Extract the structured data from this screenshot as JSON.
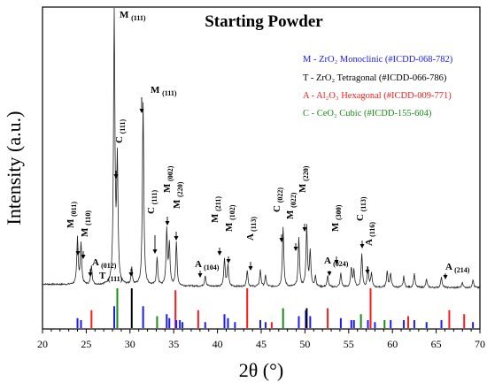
{
  "chart_data": {
    "type": "line",
    "title": "Starting Powder",
    "xlabel": "2θ (°)",
    "ylabel": "Intensity (a.u.)",
    "xlim": [
      20,
      70
    ],
    "xticks": [
      20,
      25,
      30,
      35,
      40,
      45,
      50,
      55,
      60,
      65,
      70
    ],
    "grid": false,
    "legend_placement": "top-right",
    "colors": {
      "M": "#1a1aff",
      "T": "#000000",
      "A": "#ff1a1a",
      "C": "#1a8c1a",
      "trace": "#222222"
    },
    "legend": [
      {
        "key": "M",
        "text": "M - ZrO₂ Monoclinic (#ICDD-068-782)"
      },
      {
        "key": "T",
        "text": "T - ZrO₂ Tetragonal (#ICDD-066-786)"
      },
      {
        "key": "A",
        "text": "A - Al₂O₃ Hexagonal (#ICDD-009-771)"
      },
      {
        "key": "C",
        "text": "C - CeO₂ Cubic (#ICDD-155-604)"
      }
    ],
    "pattern_peaks": [
      {
        "x": 24.0,
        "h": 0.17
      },
      {
        "x": 24.4,
        "h": 0.15
      },
      {
        "x": 25.6,
        "h": 0.07
      },
      {
        "x": 28.2,
        "h": 1.0
      },
      {
        "x": 28.55,
        "h": 0.44
      },
      {
        "x": 30.2,
        "h": 0.06
      },
      {
        "x": 31.5,
        "h": 0.67
      },
      {
        "x": 33.1,
        "h": 0.1
      },
      {
        "x": 34.2,
        "h": 0.2
      },
      {
        "x": 34.5,
        "h": 0.15
      },
      {
        "x": 35.3,
        "h": 0.16
      },
      {
        "x": 38.6,
        "h": 0.04
      },
      {
        "x": 40.8,
        "h": 0.1
      },
      {
        "x": 41.2,
        "h": 0.08
      },
      {
        "x": 43.4,
        "h": 0.06
      },
      {
        "x": 44.9,
        "h": 0.06
      },
      {
        "x": 45.5,
        "h": 0.04
      },
      {
        "x": 47.5,
        "h": 0.22
      },
      {
        "x": 49.3,
        "h": 0.18
      },
      {
        "x": 50.2,
        "h": 0.22
      },
      {
        "x": 50.6,
        "h": 0.13
      },
      {
        "x": 51.2,
        "h": 0.04
      },
      {
        "x": 52.6,
        "h": 0.04
      },
      {
        "x": 54.1,
        "h": 0.05
      },
      {
        "x": 55.3,
        "h": 0.07
      },
      {
        "x": 55.6,
        "h": 0.06
      },
      {
        "x": 56.5,
        "h": 0.12
      },
      {
        "x": 57.2,
        "h": 0.07
      },
      {
        "x": 57.6,
        "h": 0.05
      },
      {
        "x": 59.4,
        "h": 0.06
      },
      {
        "x": 59.8,
        "h": 0.05
      },
      {
        "x": 61.3,
        "h": 0.04
      },
      {
        "x": 62.5,
        "h": 0.05
      },
      {
        "x": 63.9,
        "h": 0.03
      },
      {
        "x": 65.6,
        "h": 0.04
      },
      {
        "x": 68.0,
        "h": 0.02
      },
      {
        "x": 69.2,
        "h": 0.03
      }
    ],
    "reference_lines": [
      {
        "phase": "M",
        "x": 24.0,
        "h": 0.25
      },
      {
        "phase": "M",
        "x": 24.4,
        "h": 0.2
      },
      {
        "phase": "A",
        "x": 25.6,
        "h": 0.45
      },
      {
        "phase": "M",
        "x": 28.2,
        "h": 0.55
      },
      {
        "phase": "C",
        "x": 28.55,
        "h": 1.0
      },
      {
        "phase": "T",
        "x": 30.2,
        "h": 1.0
      },
      {
        "phase": "M",
        "x": 31.5,
        "h": 0.55
      },
      {
        "phase": "C",
        "x": 33.1,
        "h": 0.3
      },
      {
        "phase": "M",
        "x": 34.2,
        "h": 0.35
      },
      {
        "phase": "M",
        "x": 34.5,
        "h": 0.25
      },
      {
        "phase": "A",
        "x": 35.2,
        "h": 0.95
      },
      {
        "phase": "M",
        "x": 35.3,
        "h": 0.2
      },
      {
        "phase": "M",
        "x": 35.7,
        "h": 0.2
      },
      {
        "phase": "M",
        "x": 36.0,
        "h": 0.15
      },
      {
        "phase": "A",
        "x": 37.8,
        "h": 0.45
      },
      {
        "phase": "M",
        "x": 38.6,
        "h": 0.15
      },
      {
        "phase": "M",
        "x": 40.8,
        "h": 0.35
      },
      {
        "phase": "M",
        "x": 41.2,
        "h": 0.25
      },
      {
        "phase": "M",
        "x": 42.0,
        "h": 0.15
      },
      {
        "phase": "A",
        "x": 43.4,
        "h": 1.0
      },
      {
        "phase": "M",
        "x": 44.9,
        "h": 0.2
      },
      {
        "phase": "M",
        "x": 45.5,
        "h": 0.15
      },
      {
        "phase": "A",
        "x": 46.2,
        "h": 0.15
      },
      {
        "phase": "C",
        "x": 47.5,
        "h": 0.5
      },
      {
        "phase": "M",
        "x": 49.3,
        "h": 0.3
      },
      {
        "phase": "M",
        "x": 50.1,
        "h": 0.45
      },
      {
        "phase": "T",
        "x": 50.2,
        "h": 0.5
      },
      {
        "phase": "M",
        "x": 50.6,
        "h": 0.3
      },
      {
        "phase": "A",
        "x": 52.6,
        "h": 0.5
      },
      {
        "phase": "M",
        "x": 54.1,
        "h": 0.25
      },
      {
        "phase": "M",
        "x": 55.3,
        "h": 0.2
      },
      {
        "phase": "M",
        "x": 55.6,
        "h": 0.2
      },
      {
        "phase": "C",
        "x": 56.4,
        "h": 0.35
      },
      {
        "phase": "A",
        "x": 57.5,
        "h": 1.0
      },
      {
        "phase": "M",
        "x": 57.2,
        "h": 0.2
      },
      {
        "phase": "M",
        "x": 58.0,
        "h": 0.15
      },
      {
        "phase": "C",
        "x": 59.1,
        "h": 0.2
      },
      {
        "phase": "M",
        "x": 59.8,
        "h": 0.2
      },
      {
        "phase": "M",
        "x": 61.3,
        "h": 0.2
      },
      {
        "phase": "A",
        "x": 61.8,
        "h": 0.3
      },
      {
        "phase": "M",
        "x": 62.5,
        "h": 0.2
      },
      {
        "phase": "M",
        "x": 63.9,
        "h": 0.15
      },
      {
        "phase": "M",
        "x": 65.6,
        "h": 0.2
      },
      {
        "phase": "A",
        "x": 66.5,
        "h": 0.45
      },
      {
        "phase": "A",
        "x": 68.2,
        "h": 0.35
      },
      {
        "phase": "M",
        "x": 69.2,
        "h": 0.15
      }
    ],
    "annotations": [
      {
        "letter": "M",
        "hkl": "(011)",
        "x": 24.0
      },
      {
        "letter": "M",
        "hkl": "(110)",
        "x": 24.4
      },
      {
        "letter": "A",
        "hkl": "(012)",
        "x": 25.6
      },
      {
        "letter": "M",
        "hkl": "(111)",
        "x": 28.2
      },
      {
        "letter": "C",
        "hkl": "(111)",
        "x": 28.55
      },
      {
        "letter": "T",
        "hkl": "(111)",
        "x": 30.2
      },
      {
        "letter": "M",
        "hkl": "(111)",
        "x": 31.5
      },
      {
        "letter": "C",
        "hkl": "(111)",
        "x": 33.1
      },
      {
        "letter": "M",
        "hkl": "(002)",
        "x": 34.2
      },
      {
        "letter": "M",
        "hkl": "(220)",
        "x": 35.3
      },
      {
        "letter": "A",
        "hkl": "(104)",
        "x": 38.6
      },
      {
        "letter": "M",
        "hkl": "(211)",
        "x": 40.8
      },
      {
        "letter": "M",
        "hkl": "(102)",
        "x": 41.2
      },
      {
        "letter": "A",
        "hkl": "(113)",
        "x": 43.4
      },
      {
        "letter": "C",
        "hkl": "(022)",
        "x": 47.5
      },
      {
        "letter": "M",
        "hkl": "(022)",
        "x": 49.3
      },
      {
        "letter": "M",
        "hkl": "(220)",
        "x": 50.2
      },
      {
        "letter": "A",
        "hkl": "(024)",
        "x": 52.6
      },
      {
        "letter": "M",
        "hkl": "(300)",
        "x": 54.1
      },
      {
        "letter": "C",
        "hkl": "(113)",
        "x": 56.5
      },
      {
        "letter": "A",
        "hkl": "(116)",
        "x": 57.5
      },
      {
        "letter": "A",
        "hkl": "(214)",
        "x": 66.5
      }
    ]
  }
}
